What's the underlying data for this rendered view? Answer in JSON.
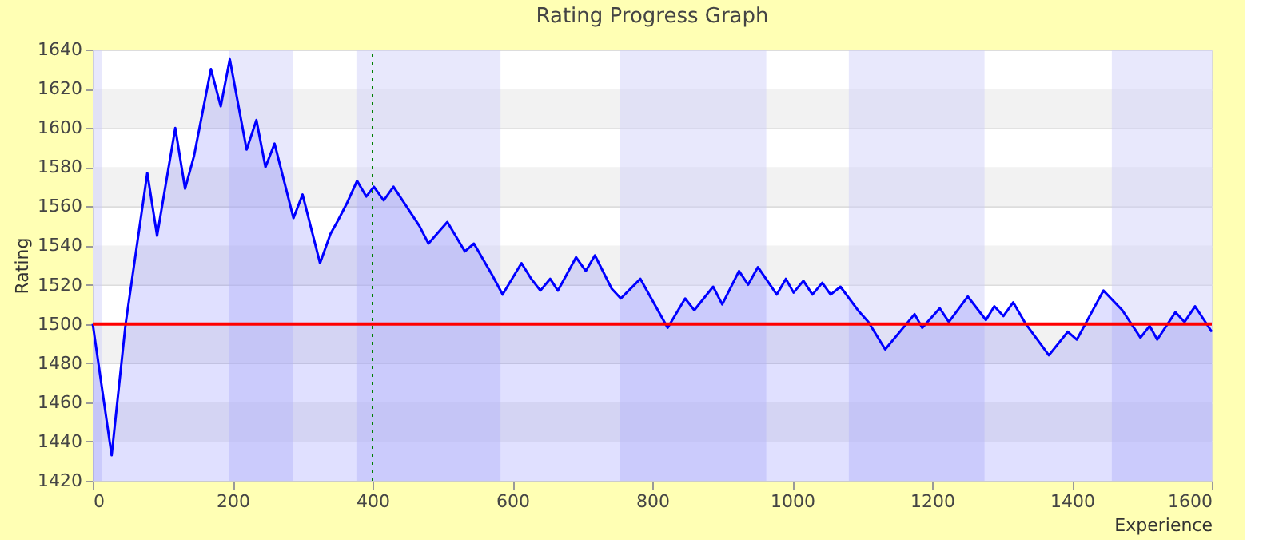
{
  "chart_data": {
    "type": "area",
    "title": "Rating Progress Graph",
    "xlabel": "Experience",
    "ylabel": "Rating",
    "xlim": [
      0,
      1600
    ],
    "xticks": [
      0,
      200,
      400,
      600,
      800,
      1000,
      1200,
      1400,
      1600
    ],
    "ylim": [
      1420,
      1640
    ],
    "yticks": [
      1420,
      1440,
      1460,
      1480,
      1500,
      1520,
      1540,
      1560,
      1580,
      1600,
      1620,
      1640
    ],
    "grid": "y",
    "series": [
      {
        "color": "#0000ff",
        "x": [
          0,
          27,
          47,
          78,
          92,
          118,
          132,
          145,
          169,
          183,
          196,
          220,
          234,
          247,
          260,
          287,
          300,
          325,
          340,
          351,
          364,
          378,
          391,
          402,
          416,
          430,
          467,
          480,
          507,
          532,
          545,
          571,
          586,
          613,
          627,
          640,
          654,
          665,
          691,
          705,
          718,
          742,
          755,
          783,
          822,
          847,
          860,
          887,
          900,
          924,
          937,
          951,
          978,
          991,
          1002,
          1016,
          1029,
          1043,
          1055,
          1069,
          1094,
          1109,
          1133,
          1175,
          1186,
          1211,
          1224,
          1251,
          1277,
          1289,
          1302,
          1316,
          1334,
          1367,
          1394,
          1407,
          1445,
          1472,
          1498,
          1511,
          1522,
          1548,
          1561,
          1576,
          1600
        ],
        "values": [
          1500,
          1433,
          1500,
          1577,
          1545,
          1600,
          1569,
          1586,
          1630,
          1611,
          1635,
          1589,
          1604,
          1580,
          1592,
          1554,
          1566,
          1531,
          1546,
          1553,
          1562,
          1573,
          1565,
          1570,
          1563,
          1570,
          1550,
          1541,
          1552,
          1537,
          1541,
          1525,
          1515,
          1531,
          1523,
          1517,
          1523,
          1517,
          1534,
          1527,
          1535,
          1518,
          1513,
          1523,
          1498,
          1513,
          1507,
          1519,
          1510,
          1527,
          1520,
          1529,
          1515,
          1523,
          1516,
          1522,
          1515,
          1521,
          1515,
          1519,
          1507,
          1501,
          1487,
          1505,
          1498,
          1508,
          1501,
          1514,
          1502,
          1509,
          1504,
          1511,
          1500,
          1484,
          1496,
          1492,
          1517,
          1507,
          1493,
          1499,
          1492,
          1506,
          1501,
          1509,
          1496
        ]
      }
    ],
    "bands": [
      {
        "axis": "x",
        "from": 0,
        "to": 13,
        "color": "#cdcdf8"
      },
      {
        "axis": "x",
        "from": 195,
        "to": 286,
        "color": "#cdcdf8"
      },
      {
        "axis": "x",
        "from": 377,
        "to": 583,
        "color": "#cdcdf8"
      },
      {
        "axis": "x",
        "from": 754,
        "to": 963,
        "color": "#cdcdf8"
      },
      {
        "axis": "x",
        "from": 1081,
        "to": 1275,
        "color": "#cdcdf8"
      },
      {
        "axis": "x",
        "from": 1457,
        "to": 1600,
        "color": "#cdcdf8"
      }
    ],
    "ref_lines": [
      {
        "axis": "y",
        "value": 1500,
        "color": "#ff0000",
        "line_style": "solid"
      },
      {
        "axis": "x",
        "value": 400,
        "color": "#008000",
        "line_style": "dotted"
      }
    ]
  }
}
